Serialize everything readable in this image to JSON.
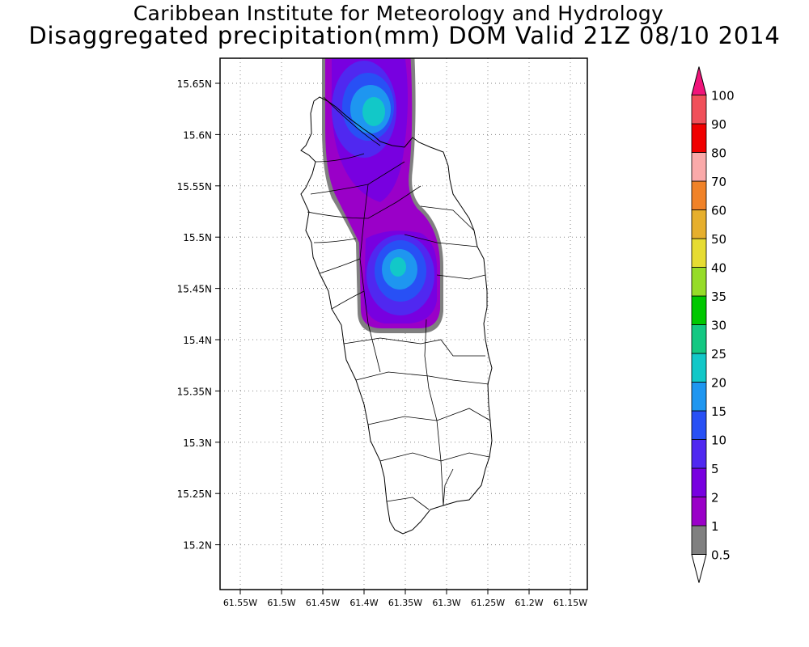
{
  "title": {
    "line1": "Caribbean Institute for Meteorology and Hydrology",
    "line2": "Disaggregated precipitation(mm) DOM Valid 21Z 08/10 2014"
  },
  "map": {
    "lat_ticks": [
      "15.65N",
      "15.6N",
      "15.55N",
      "15.5N",
      "15.45N",
      "15.4N",
      "15.35N",
      "15.3N",
      "15.25N",
      "15.2N"
    ],
    "lon_ticks": [
      "61.55W",
      "61.5W",
      "61.45W",
      "61.4W",
      "61.35W",
      "61.3W",
      "61.25W",
      "61.2W",
      "61.15W"
    ],
    "grid": true,
    "precip_cells": [
      {
        "name": "north-cell",
        "center_lon_w": 61.39,
        "center_lat_n": 15.62,
        "max_mm": 20
      },
      {
        "name": "central-cell",
        "center_lon_w": 61.355,
        "center_lat_n": 15.47,
        "max_mm": 20
      }
    ]
  },
  "legend": {
    "orientation": "vertical",
    "position": "right",
    "labels": [
      "0.5",
      "1",
      "2",
      "5",
      "10",
      "15",
      "20",
      "25",
      "30",
      "35",
      "40",
      "50",
      "60",
      "70",
      "80",
      "90",
      "100"
    ],
    "colors": [
      "#808080",
      "#9a00c8",
      "#7800e0",
      "#5028f0",
      "#2850f5",
      "#1e96f0",
      "#12c8c8",
      "#14c882",
      "#00c800",
      "#96dc28",
      "#e6dc32",
      "#e6af2d",
      "#f08228",
      "#faaaaa",
      "#f00000",
      "#f0505a",
      "#f0147a"
    ],
    "below_color": "#ffffff",
    "above_color": "#f0147a"
  }
}
